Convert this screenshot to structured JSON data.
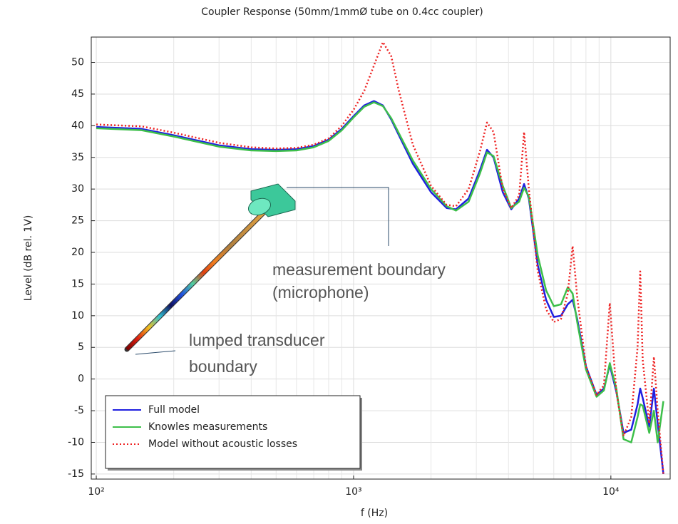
{
  "chart_data": {
    "type": "line",
    "title": "Coupler Response (50mm/1mmØ tube on 0.4cc coupler)",
    "xlabel": "f (Hz)",
    "ylabel": "Level (dB rel. 1V)",
    "xscale": "log",
    "xlim": [
      95.6,
      17000
    ],
    "ylim": [
      -15.8,
      54
    ],
    "xticks": [
      {
        "value": 100,
        "label": "10²"
      },
      {
        "value": 1000,
        "label": "10³"
      },
      {
        "value": 10000,
        "label": "10⁴"
      }
    ],
    "yticks": [
      -15,
      -10,
      -5,
      0,
      5,
      10,
      15,
      20,
      25,
      30,
      35,
      40,
      45,
      50
    ],
    "grid": true,
    "minor_grid": true,
    "legend": "lower left",
    "x": [
      100,
      150,
      200,
      300,
      400,
      500,
      600,
      700,
      800,
      900,
      1000,
      1100,
      1200,
      1300,
      1400,
      1500,
      1700,
      2000,
      2300,
      2500,
      2800,
      3100,
      3300,
      3500,
      3800,
      4100,
      4400,
      4600,
      4800,
      5200,
      5600,
      6000,
      6400,
      6800,
      7100,
      7400,
      8000,
      8800,
      9400,
      9900,
      10500,
      11200,
      12000,
      12700,
      13000,
      13300,
      14100,
      14700,
      15200,
      16000
    ],
    "series": [
      {
        "name": "Full model",
        "color": "#1f1fe0",
        "style": "solid",
        "values": [
          39.8,
          39.5,
          38.5,
          36.9,
          36.3,
          36.2,
          36.3,
          36.8,
          37.8,
          39.5,
          41.5,
          43.2,
          43.9,
          43.2,
          41,
          38.5,
          34,
          29.5,
          27,
          26.8,
          28.5,
          33,
          36.2,
          35,
          29.5,
          26.8,
          28.5,
          30.8,
          28.5,
          18,
          12.5,
          9.8,
          10,
          11.8,
          12.5,
          9.5,
          2,
          -2.5,
          -1.5,
          2.2,
          -2,
          -8.5,
          -8,
          -4,
          -1.5,
          -3,
          -7.5,
          -1.5,
          -7,
          -15
        ]
      },
      {
        "name": "Knowles measurements",
        "color": "#3dbf4a",
        "style": "solid",
        "values": [
          39.6,
          39.3,
          38.3,
          36.7,
          36.1,
          36,
          36.1,
          36.6,
          37.6,
          39.3,
          41.3,
          43,
          43.7,
          43.1,
          41.2,
          38.8,
          34.5,
          30,
          27.3,
          26.6,
          28,
          32.5,
          35.8,
          35.2,
          30.5,
          27,
          28,
          30.2,
          28.8,
          19.5,
          14,
          11.5,
          11.8,
          14.5,
          13.5,
          9,
          1.5,
          -2.8,
          -1.8,
          2.5,
          -1.5,
          -9.5,
          -10,
          -6,
          -4,
          -4.2,
          -8.5,
          -5,
          -10,
          -3.5
        ]
      },
      {
        "name": "Model without acoustic losses",
        "color": "#ee2222",
        "style": "dotted",
        "values": [
          40.2,
          39.9,
          38.9,
          37.3,
          36.6,
          36.4,
          36.5,
          37,
          38,
          40,
          42.5,
          45.5,
          49.5,
          53.2,
          51,
          45.5,
          37,
          30.5,
          27.5,
          27.3,
          30,
          36,
          40.5,
          39,
          30,
          27,
          29,
          39,
          30,
          17,
          11,
          9,
          9.5,
          13.5,
          21,
          13,
          2,
          -2.5,
          -1,
          12,
          -2,
          -9,
          -6,
          5,
          17,
          3,
          -7,
          3.5,
          -5,
          -15
        ]
      }
    ],
    "annotations": [
      [
        "measurement boundary",
        "(microphone)"
      ],
      [
        "lumped transducer",
        "boundary"
      ]
    ]
  }
}
